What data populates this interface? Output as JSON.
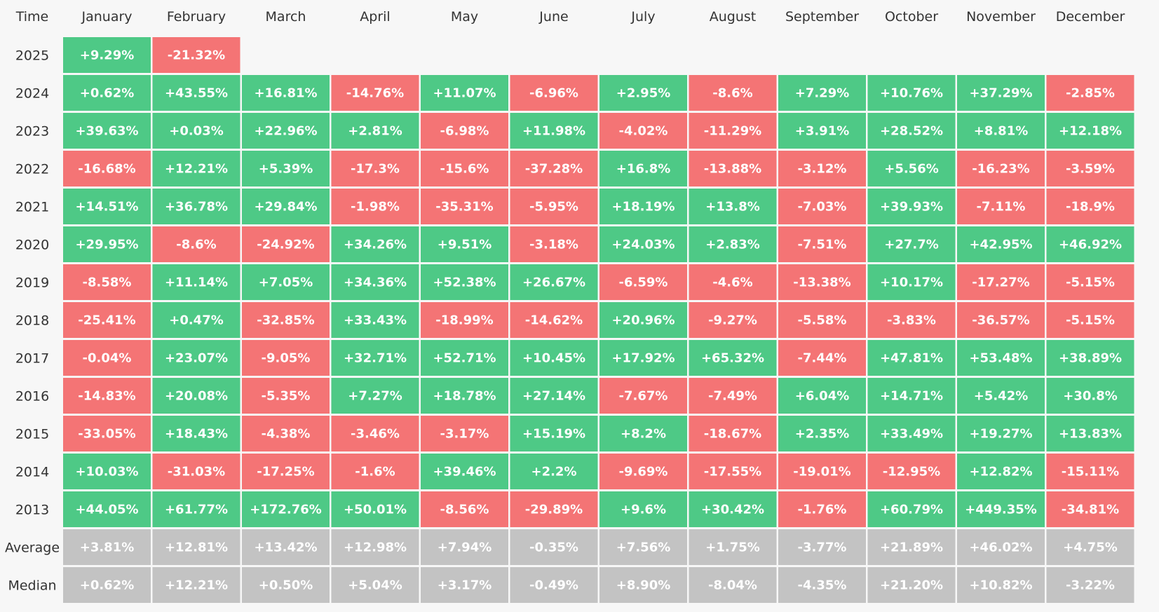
{
  "colors": {
    "positive": "#4ec986",
    "negative": "#f47475",
    "summary": "#c3c3c3",
    "text": "#333333"
  },
  "chart_data": {
    "type": "heatmap",
    "corner_label": "Time",
    "columns": [
      "January",
      "February",
      "March",
      "April",
      "May",
      "June",
      "July",
      "August",
      "September",
      "October",
      "November",
      "December"
    ],
    "rows": [
      {
        "label": "2025",
        "values": [
          "+9.29%",
          "-21.32%",
          null,
          null,
          null,
          null,
          null,
          null,
          null,
          null,
          null,
          null
        ]
      },
      {
        "label": "2024",
        "values": [
          "+0.62%",
          "+43.55%",
          "+16.81%",
          "-14.76%",
          "+11.07%",
          "-6.96%",
          "+2.95%",
          "-8.6%",
          "+7.29%",
          "+10.76%",
          "+37.29%",
          "-2.85%"
        ]
      },
      {
        "label": "2023",
        "values": [
          "+39.63%",
          "+0.03%",
          "+22.96%",
          "+2.81%",
          "-6.98%",
          "+11.98%",
          "-4.02%",
          "-11.29%",
          "+3.91%",
          "+28.52%",
          "+8.81%",
          "+12.18%"
        ]
      },
      {
        "label": "2022",
        "values": [
          "-16.68%",
          "+12.21%",
          "+5.39%",
          "-17.3%",
          "-15.6%",
          "-37.28%",
          "+16.8%",
          "-13.88%",
          "-3.12%",
          "+5.56%",
          "-16.23%",
          "-3.59%"
        ]
      },
      {
        "label": "2021",
        "values": [
          "+14.51%",
          "+36.78%",
          "+29.84%",
          "-1.98%",
          "-35.31%",
          "-5.95%",
          "+18.19%",
          "+13.8%",
          "-7.03%",
          "+39.93%",
          "-7.11%",
          "-18.9%"
        ]
      },
      {
        "label": "2020",
        "values": [
          "+29.95%",
          "-8.6%",
          "-24.92%",
          "+34.26%",
          "+9.51%",
          "-3.18%",
          "+24.03%",
          "+2.83%",
          "-7.51%",
          "+27.7%",
          "+42.95%",
          "+46.92%"
        ]
      },
      {
        "label": "2019",
        "values": [
          "-8.58%",
          "+11.14%",
          "+7.05%",
          "+34.36%",
          "+52.38%",
          "+26.67%",
          "-6.59%",
          "-4.6%",
          "-13.38%",
          "+10.17%",
          "-17.27%",
          "-5.15%"
        ]
      },
      {
        "label": "2018",
        "values": [
          "-25.41%",
          "+0.47%",
          "-32.85%",
          "+33.43%",
          "-18.99%",
          "-14.62%",
          "+20.96%",
          "-9.27%",
          "-5.58%",
          "-3.83%",
          "-36.57%",
          "-5.15%"
        ]
      },
      {
        "label": "2017",
        "values": [
          "-0.04%",
          "+23.07%",
          "-9.05%",
          "+32.71%",
          "+52.71%",
          "+10.45%",
          "+17.92%",
          "+65.32%",
          "-7.44%",
          "+47.81%",
          "+53.48%",
          "+38.89%"
        ]
      },
      {
        "label": "2016",
        "values": [
          "-14.83%",
          "+20.08%",
          "-5.35%",
          "+7.27%",
          "+18.78%",
          "+27.14%",
          "-7.67%",
          "-7.49%",
          "+6.04%",
          "+14.71%",
          "+5.42%",
          "+30.8%"
        ]
      },
      {
        "label": "2015",
        "values": [
          "-33.05%",
          "+18.43%",
          "-4.38%",
          "-3.46%",
          "-3.17%",
          "+15.19%",
          "+8.2%",
          "-18.67%",
          "+2.35%",
          "+33.49%",
          "+19.27%",
          "+13.83%"
        ]
      },
      {
        "label": "2014",
        "values": [
          "+10.03%",
          "-31.03%",
          "-17.25%",
          "-1.6%",
          "+39.46%",
          "+2.2%",
          "-9.69%",
          "-17.55%",
          "-19.01%",
          "-12.95%",
          "+12.82%",
          "-15.11%"
        ]
      },
      {
        "label": "2013",
        "values": [
          "+44.05%",
          "+61.77%",
          "+172.76%",
          "+50.01%",
          "-8.56%",
          "-29.89%",
          "+9.6%",
          "+30.42%",
          "-1.76%",
          "+60.79%",
          "+449.35%",
          "-34.81%"
        ]
      },
      {
        "label": "Average",
        "summary": true,
        "values": [
          "+3.81%",
          "+12.81%",
          "+13.42%",
          "+12.98%",
          "+7.94%",
          "-0.35%",
          "+7.56%",
          "+1.75%",
          "-3.77%",
          "+21.89%",
          "+46.02%",
          "+4.75%"
        ]
      },
      {
        "label": "Median",
        "summary": true,
        "values": [
          "+0.62%",
          "+12.21%",
          "+0.50%",
          "+5.04%",
          "+3.17%",
          "-0.49%",
          "+8.90%",
          "-8.04%",
          "-4.35%",
          "+21.20%",
          "+10.82%",
          "-3.22%"
        ]
      }
    ]
  }
}
